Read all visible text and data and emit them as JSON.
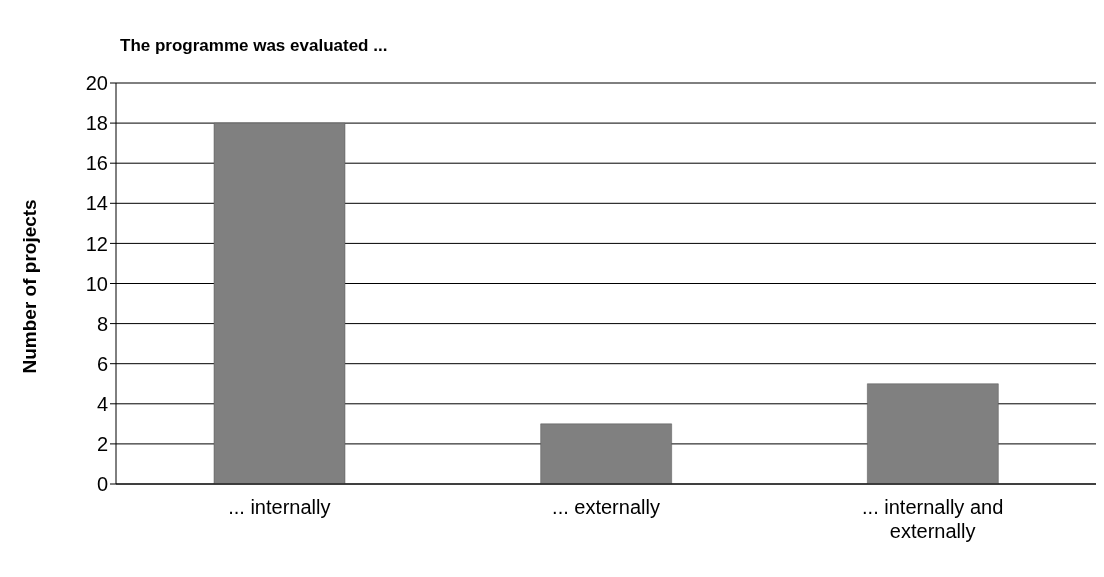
{
  "chart_data": {
    "type": "bar",
    "title": "The programme was evaluated ...",
    "ylabel": "Number of projects",
    "categories": [
      "... internally",
      "... externally",
      "... internally and externally"
    ],
    "values": [
      18,
      3,
      5
    ],
    "color": "#808080",
    "ylim": [
      0,
      20
    ],
    "yticks": [
      0,
      2,
      4,
      6,
      8,
      10,
      12,
      14,
      16,
      18,
      20
    ],
    "grid": "y",
    "legend": false
  }
}
